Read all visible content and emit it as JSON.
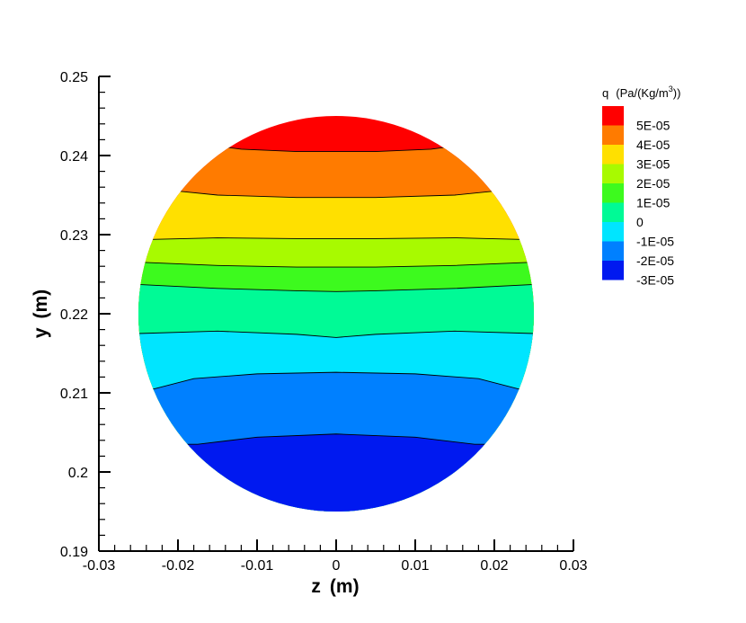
{
  "chart_data": {
    "type": "contour",
    "xlabel_main": "z",
    "xlabel_unit": "(m)",
    "ylabel_main": "y",
    "ylabel_unit": "(m)",
    "xlim": [
      -0.03,
      0.03
    ],
    "ylim": [
      0.19,
      0.25
    ],
    "x_ticks": [
      -0.03,
      -0.02,
      -0.01,
      0,
      0.01,
      0.02,
      0.03
    ],
    "x_tick_labels": [
      "-0.03",
      "-0.02",
      "-0.01",
      "0",
      "0.01",
      "0.02",
      "0.03"
    ],
    "y_ticks": [
      0.19,
      0.2,
      0.21,
      0.22,
      0.23,
      0.24,
      0.25
    ],
    "y_tick_labels": [
      "0.19",
      "0.2",
      "0.21",
      "0.22",
      "0.23",
      "0.24",
      "0.25"
    ],
    "domain": {
      "shape": "circle",
      "center_z": 0,
      "center_y": 0.22,
      "radius": 0.025
    },
    "legend": {
      "title_var": "q",
      "title_units_prefix": "(Pa/(Kg/m",
      "title_units_sup": "3",
      "title_units_suffix": "))",
      "placement": "top-right",
      "levels": [
        {
          "label": "5E-05",
          "color": "#ff0000"
        },
        {
          "label": "4E-05",
          "color": "#ff7b00"
        },
        {
          "label": "3E-05",
          "color": "#ffe000"
        },
        {
          "label": "2E-05",
          "color": "#a8fa00"
        },
        {
          "label": "1E-05",
          "color": "#3dfa1e"
        },
        {
          "label": "0",
          "color": "#00fa96"
        },
        {
          "label": "-1E-05",
          "color": "#00e5ff"
        },
        {
          "label": "-2E-05",
          "color": "#0080ff"
        },
        {
          "label": "-3E-05",
          "color": "#0019f0"
        }
      ]
    },
    "bands": [
      {
        "color": "#0019f0",
        "bottom": null,
        "top": [
          [
            -0.0175,
            0.2035
          ],
          [
            -0.01,
            0.2044
          ],
          [
            0,
            0.2048
          ],
          [
            0.01,
            0.2044
          ],
          [
            0.0175,
            0.2035
          ]
        ]
      },
      {
        "color": "#0080ff",
        "bottom": null,
        "top": [
          [
            -0.023,
            0.2105
          ],
          [
            -0.018,
            0.2118
          ],
          [
            -0.01,
            0.2124
          ],
          [
            0,
            0.2126
          ],
          [
            0.01,
            0.2124
          ],
          [
            0.018,
            0.2118
          ],
          [
            0.023,
            0.2105
          ]
        ]
      },
      {
        "color": "#00e5ff",
        "bottom": null,
        "top": [
          [
            -0.025,
            0.2175
          ],
          [
            -0.015,
            0.2178
          ],
          [
            -0.005,
            0.2174
          ],
          [
            0,
            0.217
          ],
          [
            0.005,
            0.2174
          ],
          [
            0.015,
            0.2178
          ],
          [
            0.025,
            0.2175
          ]
        ]
      },
      {
        "color": "#00fa96",
        "bottom": null,
        "top": [
          [
            -0.025,
            0.2237
          ],
          [
            -0.015,
            0.2232
          ],
          [
            -0.005,
            0.2229
          ],
          [
            0,
            0.2228
          ],
          [
            0.005,
            0.2229
          ],
          [
            0.015,
            0.2232
          ],
          [
            0.025,
            0.2237
          ]
        ]
      },
      {
        "color": "#3dfa1e",
        "bottom": null,
        "top": [
          [
            -0.0245,
            0.2265
          ],
          [
            -0.015,
            0.2261
          ],
          [
            -0.005,
            0.2259
          ],
          [
            0,
            0.2259
          ],
          [
            0.005,
            0.2259
          ],
          [
            0.015,
            0.2261
          ],
          [
            0.0245,
            0.2265
          ]
        ]
      },
      {
        "color": "#a8fa00",
        "bottom": null,
        "top": [
          [
            -0.0233,
            0.2294
          ],
          [
            -0.015,
            0.2296
          ],
          [
            -0.005,
            0.2295
          ],
          [
            0,
            0.2295
          ],
          [
            0.005,
            0.2295
          ],
          [
            0.015,
            0.2296
          ],
          [
            0.0233,
            0.2294
          ]
        ]
      },
      {
        "color": "#ffe000",
        "bottom": null,
        "top": [
          [
            -0.02,
            0.2355
          ],
          [
            -0.015,
            0.235
          ],
          [
            -0.005,
            0.2347
          ],
          [
            0,
            0.2347
          ],
          [
            0.005,
            0.2347
          ],
          [
            0.015,
            0.235
          ],
          [
            0.02,
            0.2355
          ]
        ]
      },
      {
        "color": "#ff7b00",
        "bottom": null,
        "top": [
          [
            -0.0165,
            0.2414
          ],
          [
            -0.012,
            0.2408
          ],
          [
            -0.005,
            0.2405
          ],
          [
            0,
            0.2405
          ],
          [
            0.005,
            0.2405
          ],
          [
            0.012,
            0.2408
          ],
          [
            0.0165,
            0.2414
          ]
        ]
      },
      {
        "color": "#ff0000",
        "bottom": null,
        "top": null
      }
    ]
  }
}
